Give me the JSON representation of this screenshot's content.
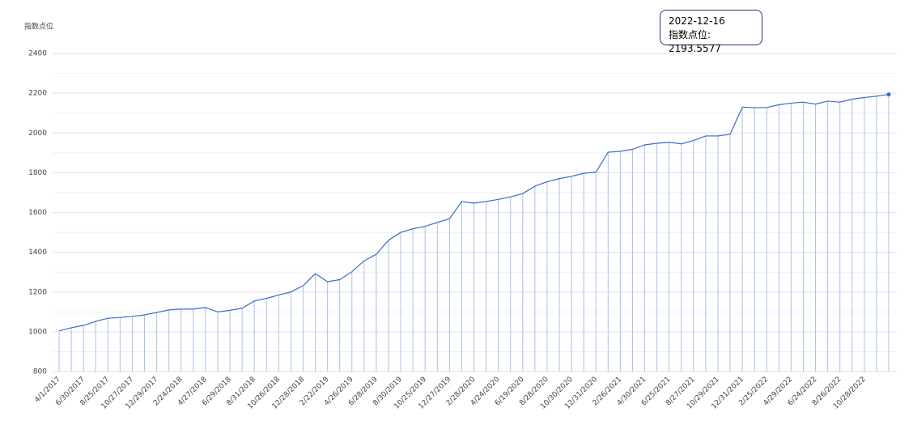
{
  "chart_data": {
    "type": "line",
    "y_label": "指数点位",
    "categories": [
      "4/1/2017",
      null,
      "6/30/2017",
      null,
      "8/25/2017",
      null,
      "10/27/2017",
      null,
      "12/29/2017",
      null,
      "2/24/2018",
      null,
      "4/27/2018",
      null,
      "6/29/2018",
      null,
      "8/31/2018",
      null,
      "10/26/2018",
      null,
      "12/28/2018",
      null,
      "2/22/2019",
      null,
      "4/26/2019",
      null,
      "6/28/2019",
      null,
      "8/30/2019",
      null,
      "10/25/2019",
      null,
      "12/27/2019",
      null,
      "2/28/2020",
      null,
      "4/24/2020",
      null,
      "6/19/2020",
      null,
      "8/28/2020",
      null,
      "10/30/2020",
      null,
      "12/31/2020",
      null,
      "2/26/2021",
      null,
      "4/30/2021",
      null,
      "6/25/2021",
      null,
      "8/27/2021",
      null,
      "10/29/2021",
      null,
      "12/31/2021",
      null,
      "2/25/2022",
      null,
      "4/29/2022",
      null,
      "6/24/2022",
      null,
      "8/26/2022",
      null,
      "10/28/2022",
      null,
      null
    ],
    "series": [
      {
        "name": "指数点位",
        "color": "#3a6cc8",
        "values": [
          1005,
          1020,
          1032,
          1052,
          1068,
          1072,
          1077,
          1085,
          1097,
          1110,
          1114,
          1114,
          1122,
          1100,
          1108,
          1118,
          1155,
          1168,
          1185,
          1200,
          1232,
          1292,
          1252,
          1262,
          1302,
          1357,
          1390,
          1460,
          1500,
          1518,
          1530,
          1550,
          1568,
          1655,
          1647,
          1655,
          1666,
          1678,
          1695,
          1732,
          1755,
          1770,
          1782,
          1797,
          1803,
          1903,
          1908,
          1918,
          1940,
          1948,
          1953,
          1945,
          1962,
          1985,
          1985,
          1993,
          2130,
          2127,
          2128,
          2142,
          2150,
          2155,
          2145,
          2160,
          2155,
          2170,
          2178,
          2185,
          2193.5577
        ]
      }
    ],
    "ylim": [
      800,
      2400
    ],
    "yticks": [
      800,
      1000,
      1200,
      1400,
      1600,
      1800,
      2000,
      2200,
      2400
    ],
    "grid": true,
    "tooltip": {
      "date": "2022-12-16",
      "text": "指数点位: 2193.5577"
    }
  }
}
